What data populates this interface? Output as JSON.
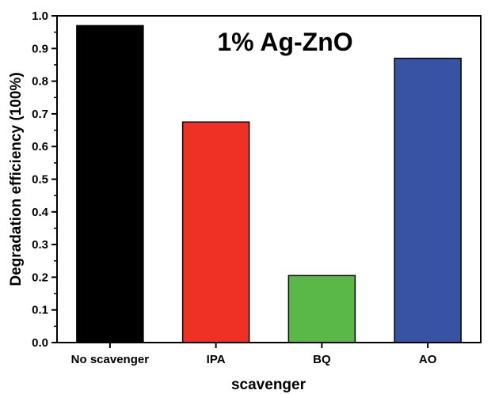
{
  "chart_data": {
    "type": "bar",
    "title": "1% Ag-ZnO",
    "xlabel": "scavenger",
    "ylabel": "Degradation efficiency (100%)",
    "categories": [
      "No scavenger",
      "IPA",
      "BQ",
      "AO"
    ],
    "values": [
      0.97,
      0.675,
      0.205,
      0.87
    ],
    "colors": [
      "#000000",
      "#ee3124",
      "#5ab946",
      "#3953a4"
    ],
    "ylim": [
      0,
      1.0
    ],
    "yticks": [
      "0.0",
      "0.1",
      "0.2",
      "0.3",
      "0.4",
      "0.5",
      "0.6",
      "0.7",
      "0.8",
      "0.9",
      "1.0"
    ],
    "grid": false,
    "legend": "none"
  }
}
